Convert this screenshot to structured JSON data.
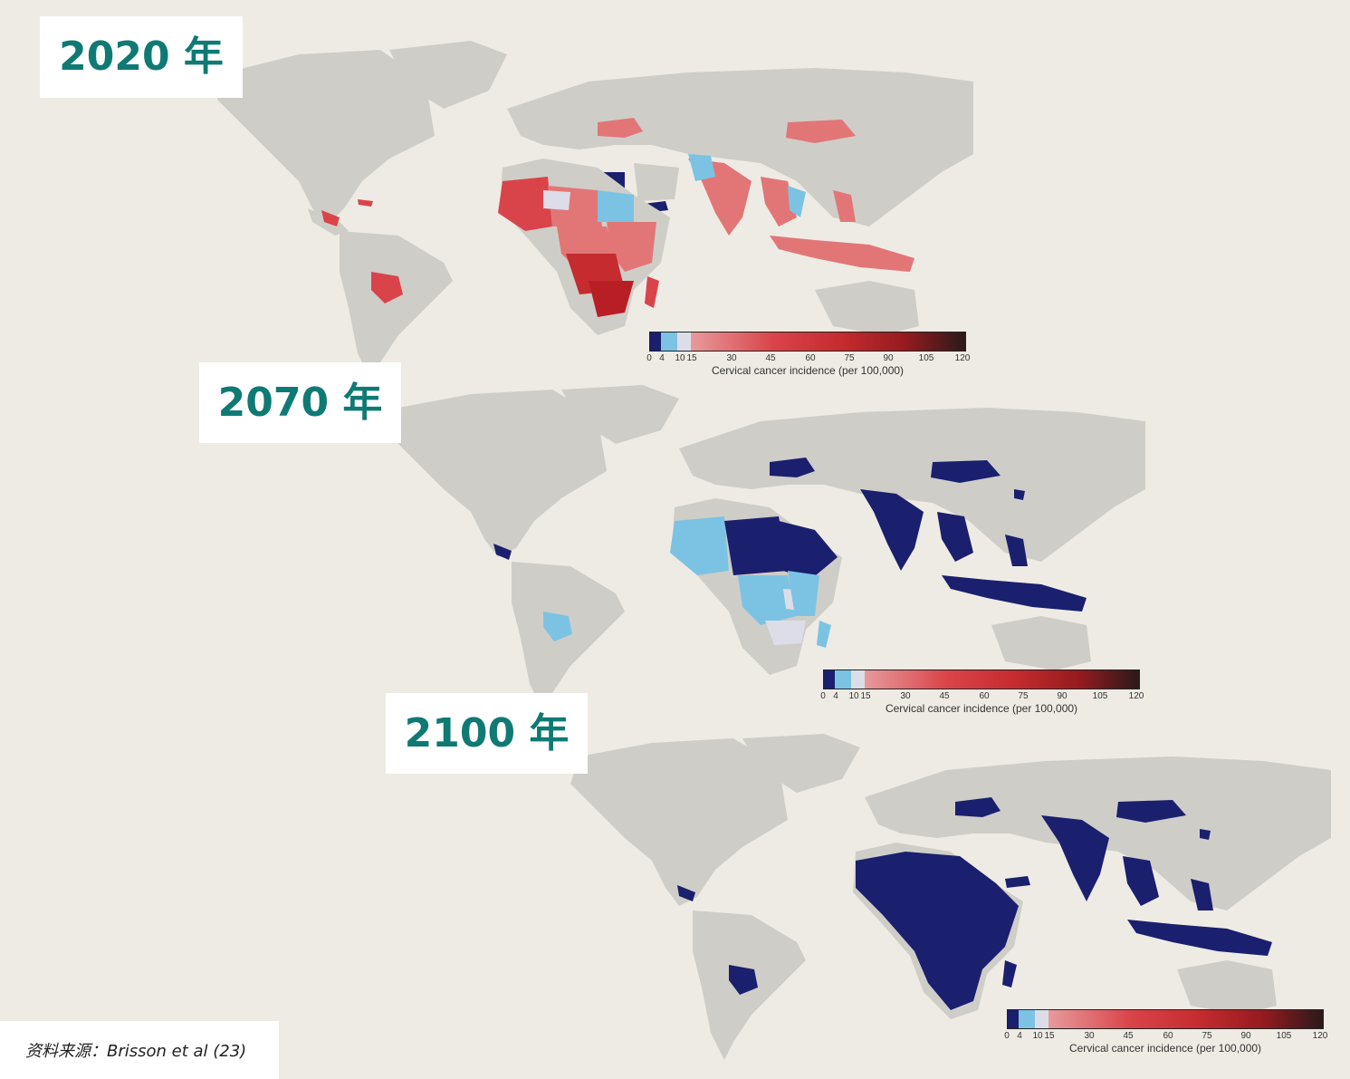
{
  "panels": [
    {
      "year_label": "2020 年",
      "legend": {
        "ticks": [
          "0",
          "4",
          "10",
          "15",
          "30",
          "45",
          "60",
          "75",
          "90",
          "105",
          "120"
        ],
        "title": "Cervical cancer incidence (per 100,000)"
      },
      "highlight": "mixed"
    },
    {
      "year_label": "2070 年",
      "legend": {
        "ticks": [
          "0",
          "4",
          "10",
          "15",
          "30",
          "45",
          "60",
          "75",
          "90",
          "105",
          "120"
        ],
        "title": "Cervical cancer incidence (per 100,000)"
      },
      "highlight": "mostly-low"
    },
    {
      "year_label": "2100 年",
      "legend": {
        "ticks": [
          "0",
          "4",
          "10",
          "15",
          "30",
          "45",
          "60",
          "75",
          "90",
          "105",
          "120"
        ],
        "title": "Cervical cancer incidence (per 100,000)"
      },
      "highlight": "all-low"
    }
  ],
  "source": "资料来源：Brisson et al (23)",
  "colors": {
    "background": "#eeebe4",
    "land": "#cfcdc8",
    "label_text": "#0f7a73",
    "band_0_4": "#1a1f6e",
    "band_4_10": "#7cc3e3",
    "band_10_15": "#dcdde8",
    "band_15_plus_start": "#e79a9b",
    "band_mid": "#c52b2f",
    "band_high": "#2a1a1a"
  }
}
